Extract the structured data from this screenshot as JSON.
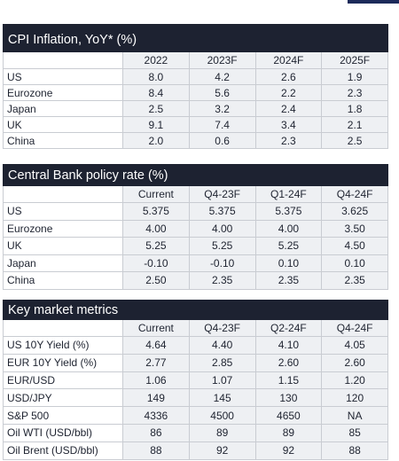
{
  "tables": [
    {
      "title": "CPI Inflation, YoY* (%)",
      "columns": [
        "2022",
        "2023F",
        "2024F",
        "2025F"
      ],
      "rows": [
        {
          "label": "US",
          "values": [
            "8.0",
            "4.2",
            "2.6",
            "1.9"
          ]
        },
        {
          "label": "Eurozone",
          "values": [
            "8.4",
            "5.6",
            "2.2",
            "2.3"
          ]
        },
        {
          "label": "Japan",
          "values": [
            "2.5",
            "3.2",
            "2.4",
            "1.8"
          ]
        },
        {
          "label": "UK",
          "values": [
            "9.1",
            "7.4",
            "3.4",
            "2.1"
          ]
        },
        {
          "label": "China",
          "values": [
            "2.0",
            "0.6",
            "2.3",
            "2.5"
          ]
        }
      ]
    },
    {
      "title": "Central Bank policy rate (%)",
      "columns": [
        "Current",
        "Q4-23F",
        "Q1-24F",
        "Q4-24F"
      ],
      "rows": [
        {
          "label": "US",
          "values": [
            "5.375",
            "5.375",
            "5.375",
            "3.625"
          ]
        },
        {
          "label": "Eurozone",
          "values": [
            "4.00",
            "4.00",
            "4.00",
            "3.50"
          ]
        },
        {
          "label": "UK",
          "values": [
            "5.25",
            "5.25",
            "5.25",
            "4.50"
          ]
        },
        {
          "label": "Japan",
          "values": [
            "-0.10",
            "-0.10",
            "0.10",
            "0.10"
          ]
        },
        {
          "label": "China",
          "values": [
            "2.50",
            "2.35",
            "2.35",
            "2.35"
          ]
        }
      ]
    },
    {
      "title": "Key market metrics",
      "columns": [
        "Current",
        "Q4-23F",
        "Q2-24F",
        "Q4-24F"
      ],
      "rows": [
        {
          "label": "US 10Y Yield (%)",
          "values": [
            "4.64",
            "4.40",
            "4.10",
            "4.05"
          ]
        },
        {
          "label": "EUR 10Y Yield (%)",
          "values": [
            "2.77",
            "2.85",
            "2.60",
            "2.60"
          ]
        },
        {
          "label": "EUR/USD",
          "values": [
            "1.06",
            "1.07",
            "1.15",
            "1.20"
          ]
        },
        {
          "label": "USD/JPY",
          "values": [
            "149",
            "145",
            "130",
            "120"
          ]
        },
        {
          "label": "S&P 500",
          "values": [
            "4336",
            "4500",
            "4650",
            "NA"
          ]
        },
        {
          "label": "Oil WTI  (USD/bbl)",
          "values": [
            "86",
            "89",
            "89",
            "85"
          ]
        },
        {
          "label": "Oil Brent (USD/bbl)",
          "values": [
            "88",
            "92",
            "92",
            "88"
          ]
        }
      ]
    }
  ]
}
